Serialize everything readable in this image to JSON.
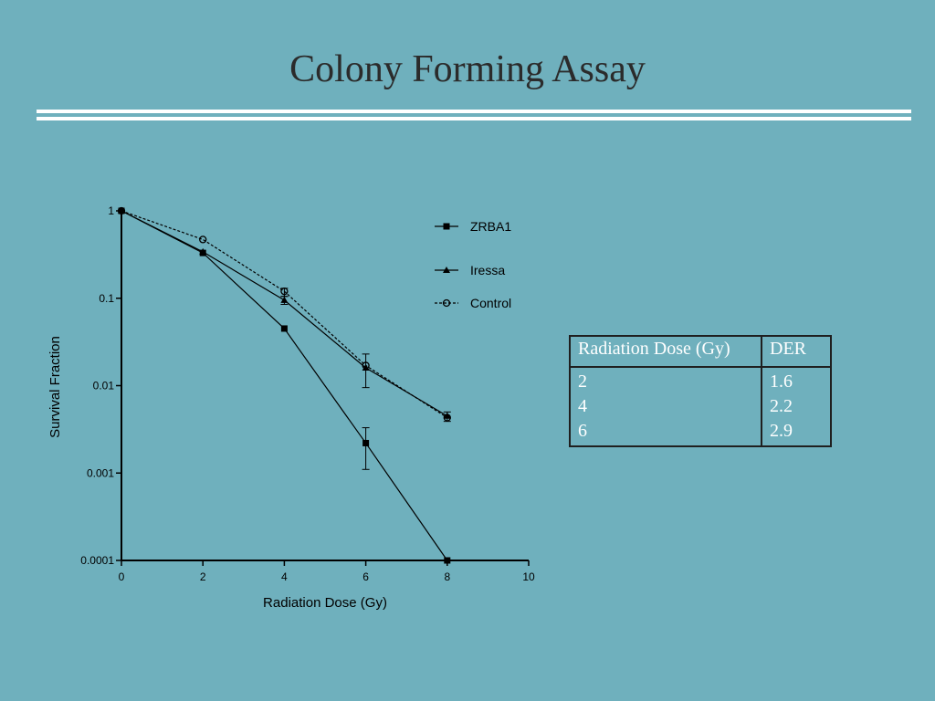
{
  "slide": {
    "title": "Colony Forming Assay"
  },
  "chart_data": {
    "type": "line",
    "xlabel": "Radiation Dose (Gy)",
    "ylabel": "Survival Fraction",
    "xlim": [
      0,
      10
    ],
    "ylim": [
      0.0001,
      1
    ],
    "yscale": "log",
    "x_ticks": [
      "0",
      "2",
      "4",
      "6",
      "8",
      "10"
    ],
    "y_ticks": [
      "0.0001",
      "0.001",
      "0.01",
      "0.1",
      "1"
    ],
    "grid": false,
    "legend_position": "top-right",
    "series": [
      {
        "name": "ZRBA1",
        "marker": "filled-square",
        "dash": "solid",
        "x": [
          0,
          2,
          4,
          6,
          8
        ],
        "y": [
          1,
          0.33,
          0.045,
          0.0022,
          0.0001
        ],
        "err_low": [
          null,
          null,
          null,
          0.0011,
          null
        ],
        "err_high": [
          null,
          null,
          null,
          0.0033,
          null
        ]
      },
      {
        "name": "Iressa",
        "marker": "filled-triangle",
        "dash": "solid",
        "x": [
          0,
          2,
          4,
          6,
          8
        ],
        "y": [
          1,
          0.34,
          0.095,
          0.016,
          0.0045
        ],
        "err_low": [
          null,
          null,
          0.085,
          0.0095,
          0.0039
        ],
        "err_high": [
          null,
          null,
          0.105,
          0.023,
          0.005
        ]
      },
      {
        "name": "Control",
        "marker": "open-circle",
        "dash": "dashed",
        "x": [
          0,
          2,
          4,
          6,
          8
        ],
        "y": [
          1,
          0.47,
          0.12,
          0.017,
          0.0043
        ],
        "err_low": [
          null,
          null,
          0.105,
          null,
          null
        ],
        "err_high": [
          null,
          null,
          0.13,
          null,
          null
        ]
      }
    ]
  },
  "der_table": {
    "headers": [
      "Radiation Dose (Gy)",
      "DER"
    ],
    "rows": [
      [
        "2",
        "1.6"
      ],
      [
        "4",
        "2.2"
      ],
      [
        "6",
        "2.9"
      ]
    ]
  },
  "colors": {
    "background": "#6fb0bd",
    "rule": "#ffffff",
    "table_text": "#ffffff",
    "ink": "#000000"
  }
}
